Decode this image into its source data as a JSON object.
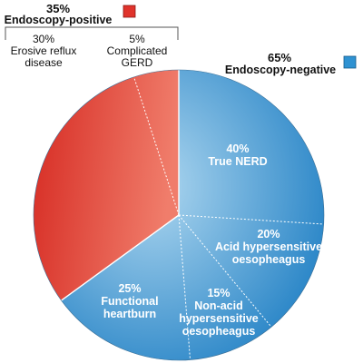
{
  "chart_data": {
    "type": "pie",
    "groups": [
      {
        "percent": "35%",
        "label": "Endoscopy-positive",
        "color": "#d8322a"
      },
      {
        "percent": "65%",
        "label": "Endoscopy-negative",
        "color": "#2a8fcf"
      }
    ],
    "slices": [
      {
        "name": "Erosive reflux disease",
        "value": 30,
        "percent": "30%",
        "group": "Endoscopy-positive"
      },
      {
        "name": "Complicated GERD",
        "value": 5,
        "percent": "5%",
        "group": "Endoscopy-positive"
      },
      {
        "name": "True NERD",
        "value": 40,
        "percent": "40%",
        "group": "Endoscopy-negative"
      },
      {
        "name": "Acid hypersensitive oesopheagus",
        "value": 20,
        "percent": "20%",
        "group": "Endoscopy-negative"
      },
      {
        "name": "Non-acid hypersensitive oesopheagus",
        "value": 15,
        "percent": "15%",
        "group": "Endoscopy-negative"
      },
      {
        "name": "Functional heartburn",
        "value": 25,
        "percent": "25%",
        "group": "Endoscopy-negative"
      }
    ]
  },
  "labels": {
    "positive_percent": "35%",
    "positive_label": "Endoscopy-positive",
    "negative_percent": "65%",
    "negative_label": "Endoscopy-negative",
    "erd_percent": "30%",
    "erd_line1": "Erosive reflux",
    "erd_line2": "disease",
    "cgerd_percent": "5%",
    "cgerd_line1": "Complicated",
    "cgerd_line2": "GERD",
    "nerd_percent": "40%",
    "nerd_line1": "True NERD",
    "acid_percent": "20%",
    "acid_line1": "Acid hypersensitive",
    "acid_line2": "oesopheagus",
    "nonacid_percent": "15%",
    "nonacid_line1": "Non-acid",
    "nonacid_line2": "hypersensitive",
    "nonacid_line3": "oesopheagus",
    "fh_percent": "25%",
    "fh_line1": "Functional",
    "fh_line2": "heartburn"
  },
  "colors": {
    "positive_dark": "#d62a22",
    "positive_light": "#f27a66",
    "negative_dark": "#1f7fc4",
    "negative_light": "#a8d3ee"
  }
}
